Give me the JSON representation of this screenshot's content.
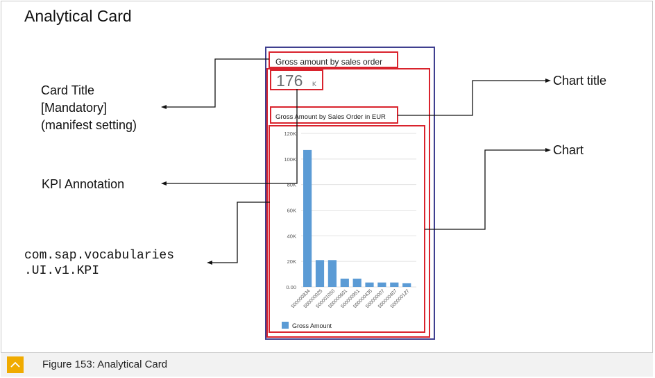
{
  "header": {
    "title": "Analytical Card"
  },
  "card": {
    "title": "Gross amount by sales order",
    "kpi_value": "176",
    "kpi_unit": "K",
    "chart_title": "Gross Amount by Sales Order in EUR",
    "legend": "Gross Amount"
  },
  "callouts": {
    "card_title_line1": "Card Title",
    "card_title_line2": "[Mandatory]",
    "card_title_line3": "(manifest setting)",
    "chart_title": "Chart title",
    "chart": "Chart",
    "kpi_annotation": "KPI Annotation",
    "vocab_line1": "com.sap.vocabularies",
    "vocab_line2": ".UI.v1.KPI"
  },
  "footer": {
    "caption": "Figure 153: Analytical Card"
  },
  "colors": {
    "accent_red": "#d9232d",
    "card_border": "#3f3f8f",
    "bar": "#5b9bd5",
    "footer_icon": "#f0ab00"
  },
  "chart_data": {
    "type": "bar",
    "categories": [
      "500000834",
      "500000025",
      "500001050",
      "500000601",
      "500000951",
      "500000435",
      "500000007",
      "500000407",
      "500000127"
    ],
    "series": [
      {
        "name": "Gross Amount",
        "values": [
          107000,
          21000,
          21000,
          6500,
          6500,
          3500,
          3500,
          3500,
          3000
        ]
      }
    ],
    "ylim": [
      0,
      120000
    ],
    "yticks": [
      "0.00",
      "20K",
      "40K",
      "60K",
      "80K",
      "100K",
      "120K"
    ],
    "legend_position": "bottom-left"
  }
}
